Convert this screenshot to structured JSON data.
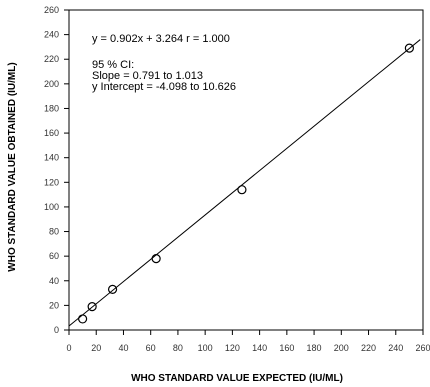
{
  "chart_data": {
    "type": "scatter",
    "title": "",
    "xlabel": "WHO STANDARD VALUE EXPECTED (IU/ML)",
    "ylabel": "WHO STANDARD VALUE OBTAINED (IU/ML)",
    "xlim": [
      0,
      260
    ],
    "ylim": [
      0,
      260
    ],
    "x_ticks": [
      0,
      20,
      40,
      60,
      80,
      100,
      120,
      140,
      160,
      180,
      200,
      220,
      240,
      260
    ],
    "y_ticks": [
      0,
      20,
      40,
      60,
      80,
      100,
      120,
      140,
      160,
      180,
      200,
      220,
      240,
      260
    ],
    "x_tick_labels": [
      "0",
      "20",
      "40",
      "60",
      "80",
      "100",
      "120",
      "140",
      "160",
      "180",
      "200",
      "220",
      "240",
      "260"
    ],
    "y_tick_labels": [
      "0",
      "20",
      "40",
      "60",
      "80",
      "100",
      "120",
      "140",
      "160",
      "180",
      "200",
      "220",
      "240",
      "260"
    ],
    "grid": false,
    "legend": "none",
    "points": [
      {
        "x": 10,
        "y": 9
      },
      {
        "x": 17,
        "y": 19
      },
      {
        "x": 32,
        "y": 33
      },
      {
        "x": 64,
        "y": 58
      },
      {
        "x": 127,
        "y": 114
      },
      {
        "x": 250,
        "y": 229
      }
    ],
    "fit_line": {
      "slope": 0.902,
      "intercept": 3.264,
      "x_range": [
        0,
        258
      ]
    },
    "annotations": [
      "y = 0.902x + 3.264   r = 1.000",
      "95 % CI:",
      "Slope =  0.791 to 1.013",
      "y Intercept = -4.098 to 10.626"
    ]
  }
}
